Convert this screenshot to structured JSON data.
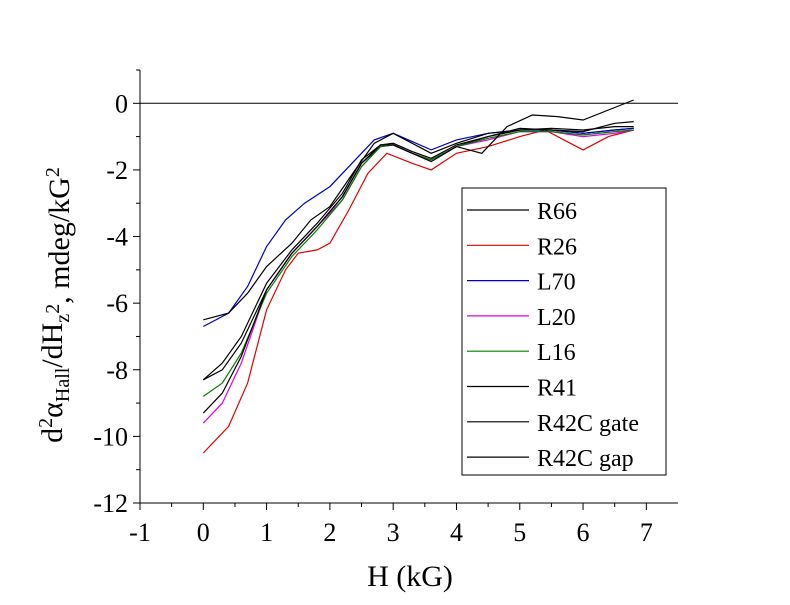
{
  "chart_data": {
    "type": "line",
    "title": "",
    "xlabel": "H (kG)",
    "ylabel": "d²α_Hall/dH_z², mdeg/kG²",
    "ylabel_parts": {
      "d": "d",
      "sup2": "2",
      "alpha": "α",
      "sub_hall": "Hall",
      "slash_dh": "/dH",
      "sub_z": "z",
      "sup2b": "2",
      "units": ", mdeg/kG",
      "sup2c": "2"
    },
    "xlim": [
      -1,
      7.5
    ],
    "ylim": [
      -12,
      1
    ],
    "xticks": [
      -1,
      0,
      1,
      2,
      3,
      4,
      5,
      6,
      7
    ],
    "yticks": [
      -12,
      -10,
      -8,
      -6,
      -4,
      -2,
      0
    ],
    "xtick_labels": [
      "-1",
      "0",
      "1",
      "2",
      "3",
      "4",
      "5",
      "6",
      "7"
    ],
    "ytick_labels": [
      "-12",
      "-10",
      "-8",
      "-6",
      "-4",
      "-2",
      "0"
    ],
    "zero_line": true,
    "grid": false,
    "legend_position": "right",
    "series": [
      {
        "name": "R66",
        "color": "#000000",
        "x": [
          0,
          0.3,
          0.6,
          1.0,
          1.4,
          1.8,
          2.2,
          2.5,
          2.8,
          3.0,
          3.3,
          3.6,
          4.0,
          4.5,
          5.0,
          5.5,
          6.0,
          6.5,
          6.8
        ],
        "y": [
          -8.3,
          -8.0,
          -7.2,
          -5.6,
          -4.5,
          -3.7,
          -2.8,
          -1.8,
          -1.3,
          -1.25,
          -1.5,
          -1.7,
          -1.3,
          -1.0,
          -0.8,
          -0.8,
          -0.9,
          -0.8,
          -0.75
        ]
      },
      {
        "name": "R26",
        "color": "#e00000",
        "x": [
          0,
          0.4,
          0.7,
          1.0,
          1.3,
          1.5,
          1.8,
          2.0,
          2.3,
          2.6,
          2.9,
          3.3,
          3.6,
          4.0,
          4.5,
          5.0,
          5.4,
          5.8,
          6.0,
          6.4,
          6.8
        ],
        "y": [
          -10.5,
          -9.7,
          -8.4,
          -6.2,
          -5.0,
          -4.5,
          -4.4,
          -4.2,
          -3.2,
          -2.1,
          -1.5,
          -1.8,
          -2.0,
          -1.5,
          -1.3,
          -1.0,
          -0.8,
          -1.2,
          -1.4,
          -1.0,
          -0.8
        ]
      },
      {
        "name": "L70",
        "color": "#0000c0",
        "x": [
          0,
          0.4,
          0.7,
          1.0,
          1.3,
          1.6,
          2.0,
          2.4,
          2.7,
          3.0,
          3.3,
          3.6,
          4.0,
          4.5,
          5.0,
          5.5,
          6.0,
          6.5,
          6.8
        ],
        "y": [
          -6.7,
          -6.3,
          -5.5,
          -4.3,
          -3.5,
          -3.0,
          -2.5,
          -1.7,
          -1.1,
          -0.9,
          -1.15,
          -1.4,
          -1.1,
          -0.9,
          -0.8,
          -0.8,
          -0.9,
          -0.8,
          -0.75
        ]
      },
      {
        "name": "L20",
        "color": "#e000e0",
        "x": [
          0,
          0.3,
          0.6,
          1.0,
          1.4,
          1.8,
          2.2,
          2.5,
          2.8,
          3.0,
          3.3,
          3.6,
          4.0,
          4.5,
          5.0,
          5.5,
          6.0,
          6.5,
          6.8
        ],
        "y": [
          -9.6,
          -9.0,
          -7.8,
          -5.6,
          -4.5,
          -3.7,
          -2.9,
          -1.9,
          -1.3,
          -1.25,
          -1.5,
          -1.7,
          -1.3,
          -1.1,
          -0.85,
          -0.85,
          -1.0,
          -0.9,
          -0.8
        ]
      },
      {
        "name": "L16",
        "color": "#008000",
        "x": [
          0,
          0.3,
          0.6,
          1.0,
          1.4,
          1.8,
          2.2,
          2.5,
          2.8,
          3.0,
          3.3,
          3.6,
          4.0,
          4.5,
          5.0,
          5.5,
          6.0,
          6.5,
          6.8
        ],
        "y": [
          -8.8,
          -8.4,
          -7.5,
          -5.7,
          -4.6,
          -3.8,
          -2.9,
          -1.9,
          -1.3,
          -1.25,
          -1.5,
          -1.7,
          -1.3,
          -1.05,
          -0.85,
          -0.85,
          -0.95,
          -0.85,
          -0.8
        ]
      },
      {
        "name": "R41",
        "color": "#000000",
        "x": [
          0,
          0.4,
          0.7,
          1.0,
          1.4,
          1.7,
          2.0,
          2.4,
          2.7,
          3.0,
          3.3,
          3.6,
          4.0,
          4.5,
          5.0,
          5.5,
          6.0,
          6.5,
          6.8
        ],
        "y": [
          -6.5,
          -6.3,
          -5.7,
          -4.9,
          -4.2,
          -3.5,
          -3.1,
          -2.0,
          -1.2,
          -0.9,
          -1.2,
          -1.5,
          -1.2,
          -0.9,
          -0.8,
          -0.75,
          -0.8,
          -0.7,
          -0.7
        ]
      },
      {
        "name": "R42C gate",
        "color": "#000000",
        "x": [
          0,
          0.3,
          0.6,
          1.0,
          1.4,
          1.8,
          2.2,
          2.5,
          2.8,
          3.0,
          3.3,
          3.6,
          4.0,
          4.4,
          4.8,
          5.2,
          5.6,
          6.0,
          6.4,
          6.8
        ],
        "y": [
          -9.3,
          -8.7,
          -7.6,
          -5.6,
          -4.5,
          -3.7,
          -2.8,
          -1.8,
          -1.25,
          -1.25,
          -1.5,
          -1.75,
          -1.3,
          -1.5,
          -0.7,
          -0.35,
          -0.4,
          -0.5,
          -0.2,
          0.1
        ]
      },
      {
        "name": "R42C gap",
        "color": "#000000",
        "x": [
          0,
          0.3,
          0.6,
          1.0,
          1.4,
          1.8,
          2.2,
          2.5,
          2.8,
          3.0,
          3.3,
          3.6,
          4.0,
          4.5,
          5.0,
          5.5,
          6.0,
          6.5,
          6.8
        ],
        "y": [
          -8.3,
          -7.8,
          -7.0,
          -5.4,
          -4.4,
          -3.6,
          -2.7,
          -1.7,
          -1.25,
          -1.2,
          -1.45,
          -1.65,
          -1.25,
          -1.0,
          -0.75,
          -0.8,
          -0.85,
          -0.6,
          -0.55
        ]
      }
    ]
  }
}
